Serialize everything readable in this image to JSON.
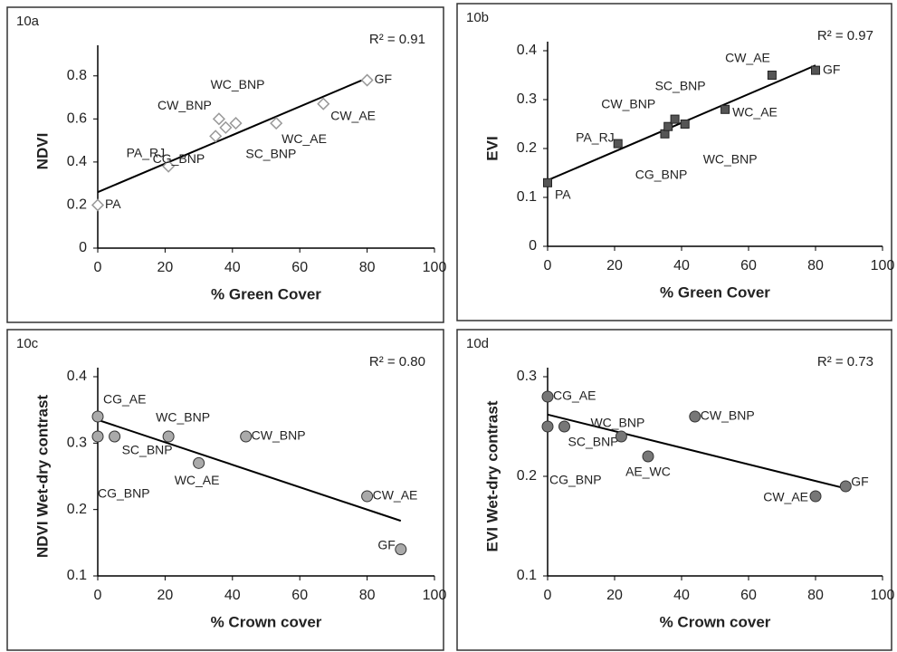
{
  "chart_data": [
    {
      "type": "scatter",
      "panel_label": "10a",
      "annotation": "R² = 0.91",
      "x_label": "% Green Cover",
      "y_label": "NDVI",
      "marker": "diamond",
      "color": "#999999",
      "x": [
        0,
        21,
        35,
        36,
        38,
        41,
        53,
        67,
        80
      ],
      "values": [
        0.2,
        0.38,
        0.52,
        0.6,
        0.56,
        0.58,
        0.58,
        0.67,
        0.78
      ],
      "point_labels": [
        "PA",
        "PA_RJ",
        "CG_BNP",
        "CW_BNP",
        "SC_BNP",
        "WC_BNP",
        "WC_AE",
        "CW_AE",
        "GF"
      ],
      "trendline": {
        "x": [
          0,
          80
        ],
        "values": [
          0.26,
          0.79
        ]
      },
      "xlim": [
        0,
        100
      ],
      "xticks": [
        0,
        20,
        40,
        60,
        80,
        100
      ],
      "ylim": [
        0,
        0.9
      ],
      "yticks": [
        0,
        0.2,
        0.4,
        0.6,
        0.8
      ]
    },
    {
      "type": "scatter",
      "panel_label": "10b",
      "annotation": "R² = 0.97",
      "x_label": "% Green Cover",
      "y_label": "EVI",
      "marker": "square",
      "color": "#555555",
      "x": [
        0,
        21,
        35,
        36,
        38,
        41,
        53,
        67,
        80
      ],
      "values": [
        0.13,
        0.21,
        0.23,
        0.245,
        0.26,
        0.25,
        0.28,
        0.35,
        0.36
      ],
      "point_labels": [
        "PA",
        "PA_RJ",
        "CG_BNP",
        "CW_BNP",
        "SC_BNP",
        "WC_BNP",
        "WC_AE",
        "CW_AE",
        "GF"
      ],
      "trendline": {
        "x": [
          0,
          80
        ],
        "values": [
          0.135,
          0.37
        ]
      },
      "xlim": [
        0,
        100
      ],
      "xticks": [
        0,
        20,
        40,
        60,
        80,
        100
      ],
      "ylim": [
        0,
        0.4
      ],
      "yticks": [
        0,
        0.1,
        0.2,
        0.3,
        0.4
      ]
    },
    {
      "type": "scatter",
      "panel_label": "10c",
      "annotation": "R² = 0.80",
      "x_label": "% Crown cover",
      "y_label": "NDVI Wet-dry contrast",
      "marker": "circle",
      "color": "#aaaaaa",
      "x": [
        0,
        0,
        5,
        21,
        30,
        44,
        80,
        90
      ],
      "values": [
        0.34,
        0.31,
        0.31,
        0.31,
        0.27,
        0.31,
        0.22,
        0.14
      ],
      "point_labels": [
        "CG_AE",
        "CG_BNP",
        "SC_BNP",
        "WC_BNP",
        "WC_AE",
        "CW_BNP",
        "CW_AE",
        "GF"
      ],
      "trendline": {
        "x": [
          0,
          90
        ],
        "values": [
          0.335,
          0.183
        ]
      },
      "xlim": [
        0,
        100
      ],
      "xticks": [
        0,
        20,
        40,
        60,
        80,
        100
      ],
      "ylim": [
        0.1,
        0.4
      ],
      "yticks": [
        0.1,
        0.2,
        0.3,
        0.4
      ]
    },
    {
      "type": "scatter",
      "panel_label": "10d",
      "annotation": "R² = 0.73",
      "x_label": "% Crown cover",
      "y_label": "EVI Wet-dry contrast",
      "marker": "circle",
      "color": "#777777",
      "x": [
        0,
        0,
        5,
        22,
        30,
        44,
        80,
        89
      ],
      "values": [
        0.28,
        0.25,
        0.25,
        0.24,
        0.22,
        0.26,
        0.18,
        0.19
      ],
      "point_labels": [
        "CG_AE",
        "CG_BNP",
        "SC_BNP",
        "WC_BNP",
        "AE_WC",
        "CW_BNP",
        "CW_AE",
        "GF"
      ],
      "trendline": {
        "x": [
          0,
          90
        ],
        "values": [
          0.262,
          0.187
        ]
      },
      "xlim": [
        0,
        100
      ],
      "xticks": [
        0,
        20,
        40,
        60,
        80,
        100
      ],
      "ylim": [
        0.1,
        0.3
      ],
      "yticks": [
        0.1,
        0.2,
        0.3
      ]
    }
  ]
}
